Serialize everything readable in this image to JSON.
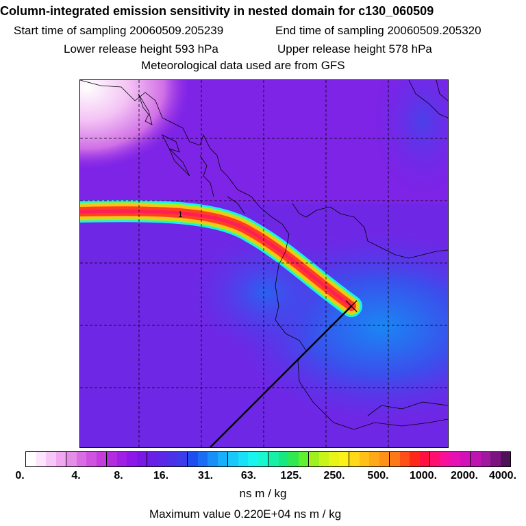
{
  "header": {
    "title": "Column-integrated emission sensitivity in nested domain for c130_060509",
    "start_time": "Start time of sampling 20060509.205239",
    "end_time": "End time of sampling 20060509.205320",
    "lower_release": "Lower release height  593 hPa",
    "upper_release": "Upper release height  578 hPa",
    "met_data": "Meteorological data used are from GFS"
  },
  "map": {
    "background_color": "#8a1fe6",
    "plume_release_marker": "x-mark",
    "plume_label": "1"
  },
  "colorbar": {
    "tick_labels": [
      "0.",
      "4.",
      "8.",
      "16.",
      "31.",
      "63.",
      "125.",
      "250.",
      "500.",
      "1000.",
      "2000.",
      "4000."
    ],
    "segments": [
      [
        "#ffffff",
        "#fde5fd",
        "#f7c8f7",
        "#f0a8f0"
      ],
      [
        "#e58ee8",
        "#d96ee4",
        "#cf52e0",
        "#c43cde"
      ],
      [
        "#b42ce0",
        "#a020e6",
        "#8d18e8",
        "#7a18e8"
      ],
      [
        "#6a1ee6",
        "#5a28e6",
        "#4a32e8",
        "#3c3cea"
      ],
      [
        "#1e4ef0",
        "#1a6ef4",
        "#1890f8",
        "#18b0fa"
      ],
      [
        "#18c8fa",
        "#18e0f8",
        "#18f4ee",
        "#18f8d0"
      ],
      [
        "#18f0a8",
        "#18e880",
        "#30e850",
        "#60f030"
      ],
      [
        "#a0f020",
        "#c8f418",
        "#e8f418",
        "#fff018"
      ],
      [
        "#ffd818",
        "#ffc018",
        "#ffa818",
        "#ff9018"
      ],
      [
        "#ff7818",
        "#ff5018",
        "#ff2818",
        "#ff1040"
      ],
      [
        "#ff1070",
        "#f8109a",
        "#e610b4",
        "#d410b8"
      ],
      [
        "#c014b0",
        "#a0189c",
        "#7c1480",
        "#50105a"
      ]
    ],
    "units": "ns m / kg",
    "max_value": "Maximum value  0.220E+04 ns m / kg"
  }
}
